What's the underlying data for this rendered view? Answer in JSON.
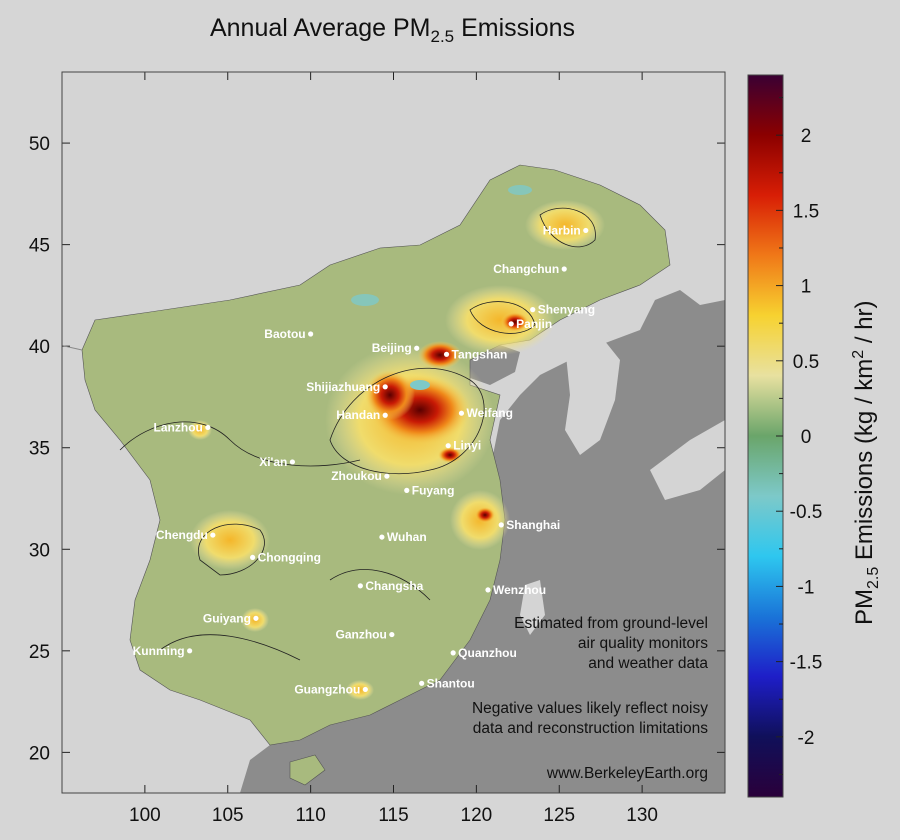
{
  "title": {
    "prefix": "Annual Average PM",
    "subscript": "2.5",
    "suffix": " Emissions"
  },
  "x_axis": {
    "ticks": [
      100,
      105,
      110,
      115,
      120,
      125,
      130
    ],
    "range": [
      95,
      135
    ]
  },
  "y_axis": {
    "ticks": [
      20,
      25,
      30,
      35,
      40,
      45,
      50
    ],
    "range": [
      18,
      53.5
    ]
  },
  "colorbar": {
    "ticks": [
      "2",
      "1.5",
      "1",
      "0.5",
      "0",
      "-0.5",
      "-1",
      "-1.5",
      "-2"
    ],
    "tick_values": [
      2,
      1.5,
      1,
      0.5,
      0,
      -0.5,
      -1,
      -1.5,
      -2
    ],
    "range": [
      -2.4,
      2.4
    ],
    "label_prefix": "PM",
    "label_sub": "2.5",
    "label_suffix": " Emissions (kg / km",
    "label_sup": "2",
    "label_end": " / hr)",
    "colors": [
      "#3a0033",
      "#8b0000",
      "#d81e05",
      "#f07818",
      "#f7d230",
      "#e8e1a0",
      "#6aa56a",
      "#7dc9c9",
      "#2ec7ef",
      "#1a74d8",
      "#1e1ec8",
      "#10105a",
      "#2a003a"
    ]
  },
  "cities": [
    {
      "name": "Harbin",
      "lon": 126.6,
      "lat": 45.7
    },
    {
      "name": "Changchun",
      "lon": 125.3,
      "lat": 43.8
    },
    {
      "name": "Shenyang",
      "lon": 123.4,
      "lat": 41.8
    },
    {
      "name": "Panjin",
      "lon": 122.1,
      "lat": 41.1
    },
    {
      "name": "Baotou",
      "lon": 110.0,
      "lat": 40.6
    },
    {
      "name": "Beijing",
      "lon": 116.4,
      "lat": 39.9
    },
    {
      "name": "Tangshan",
      "lon": 118.2,
      "lat": 39.6
    },
    {
      "name": "Shijiazhuang",
      "lon": 114.5,
      "lat": 38.0
    },
    {
      "name": "Handan",
      "lon": 114.5,
      "lat": 36.6
    },
    {
      "name": "Weifang",
      "lon": 119.1,
      "lat": 36.7
    },
    {
      "name": "Lanzhou",
      "lon": 103.8,
      "lat": 36.0
    },
    {
      "name": "Linyi",
      "lon": 118.3,
      "lat": 35.1
    },
    {
      "name": "Xi'an",
      "lon": 108.9,
      "lat": 34.3
    },
    {
      "name": "Zhoukou",
      "lon": 114.6,
      "lat": 33.6
    },
    {
      "name": "Fuyang",
      "lon": 115.8,
      "lat": 32.9
    },
    {
      "name": "Shanghai",
      "lon": 121.5,
      "lat": 31.2
    },
    {
      "name": "Chengdu",
      "lon": 104.1,
      "lat": 30.7
    },
    {
      "name": "Wuhan",
      "lon": 114.3,
      "lat": 30.6
    },
    {
      "name": "Chongqing",
      "lon": 106.5,
      "lat": 29.6
    },
    {
      "name": "Changsha",
      "lon": 113.0,
      "lat": 28.2
    },
    {
      "name": "Wenzhou",
      "lon": 120.7,
      "lat": 28.0
    },
    {
      "name": "Guiyang",
      "lon": 106.7,
      "lat": 26.6
    },
    {
      "name": "Ganzhou",
      "lon": 114.9,
      "lat": 25.8
    },
    {
      "name": "Kunming",
      "lon": 102.7,
      "lat": 25.0
    },
    {
      "name": "Quanzhou",
      "lon": 118.6,
      "lat": 24.9
    },
    {
      "name": "Shantou",
      "lon": 116.7,
      "lat": 23.4
    },
    {
      "name": "Guangzhou",
      "lon": 113.3,
      "lat": 23.1
    }
  ],
  "notes": {
    "estimated": [
      "Estimated from ground-level",
      "air quality monitors",
      "and weather data"
    ],
    "negative": [
      "Negative values likely reflect noisy",
      "data and reconstruction limitations"
    ],
    "source": "www.BerkeleyEarth.org"
  },
  "colors": {
    "ocean": "#8c8c8c",
    "foreign_land": "#d4d4d4",
    "background": "#d6d6d6",
    "china_base": "#9fb57a"
  }
}
